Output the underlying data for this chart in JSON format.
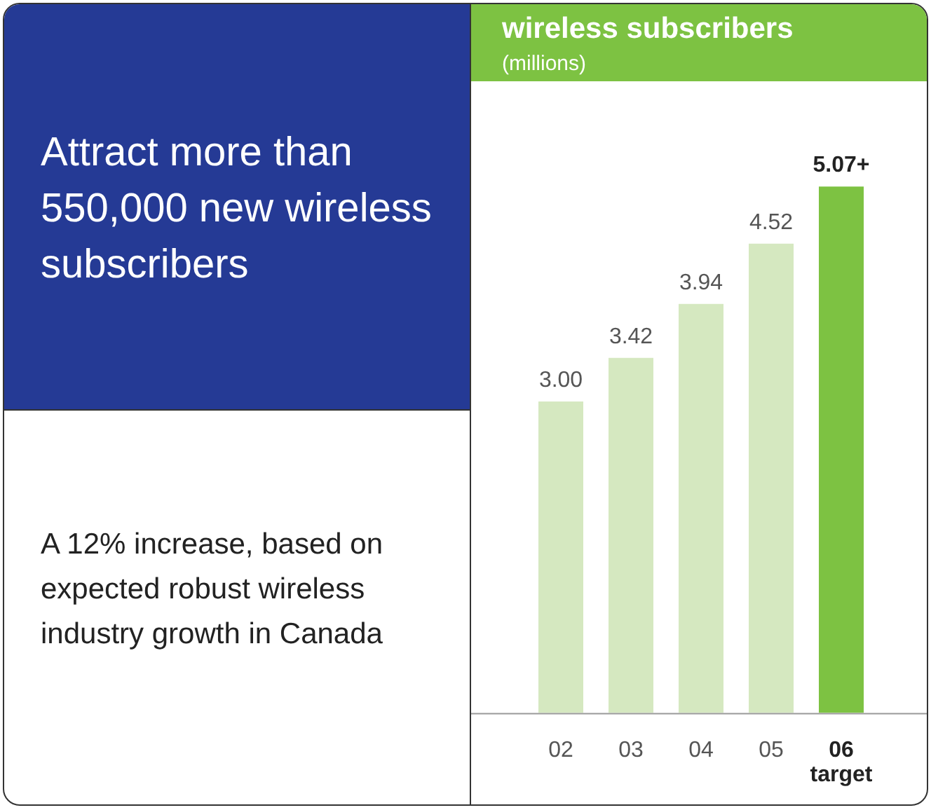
{
  "chart_data": {
    "type": "bar",
    "title": "wireless subscribers",
    "subtitle": "(millions)",
    "categories": [
      "02",
      "03",
      "04",
      "05",
      "06\ntarget"
    ],
    "values": [
      3.0,
      3.42,
      3.94,
      4.52,
      5.07
    ],
    "colors": [
      "#d5e8c0",
      "#d5e8c0",
      "#d5e8c0",
      "#d5e8c0",
      "#7dc242"
    ],
    "value_labels": [
      "3.00",
      "3.42",
      "3.94",
      "4.52",
      "5.07+"
    ],
    "annotations": [
      "Attract more than 550,000 new wireless subscribers",
      "A 12% increase, based on expected robust wireless industry growth in Canada"
    ],
    "grid": false,
    "legend": false
  }
}
